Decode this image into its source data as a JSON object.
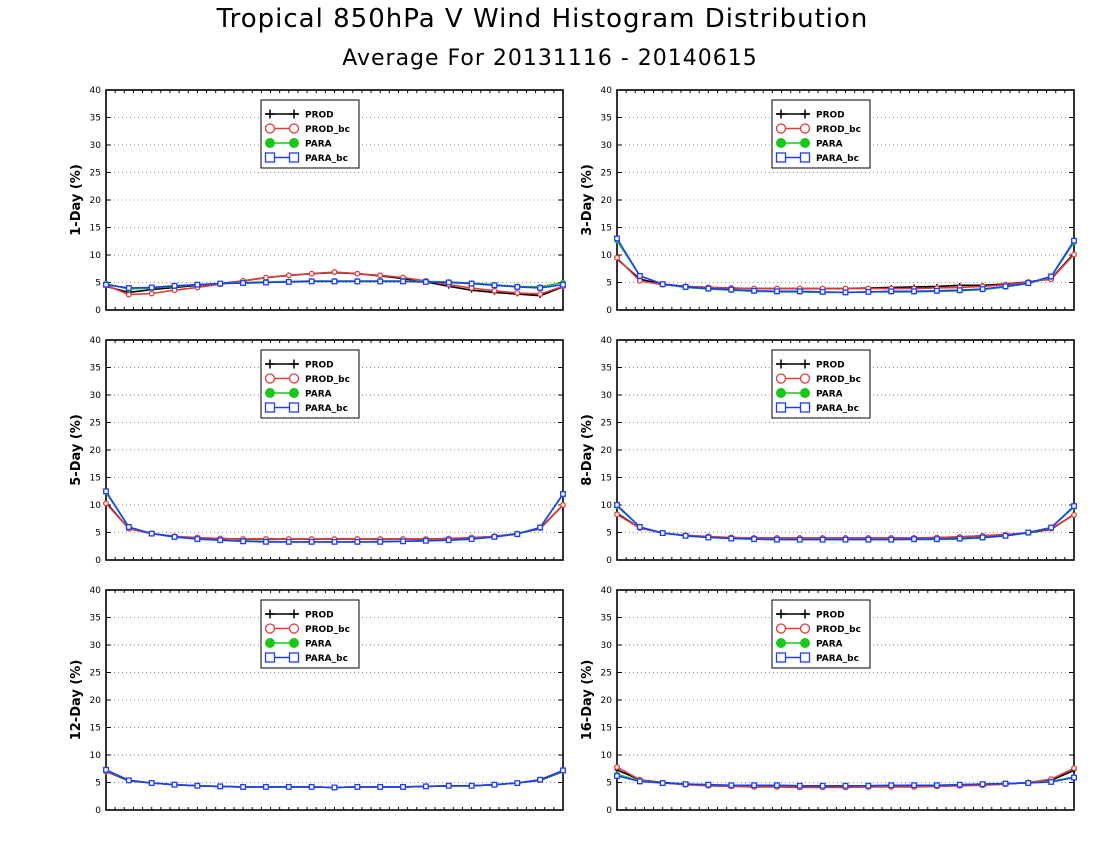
{
  "title": "Tropical 850hPa V Wind Histogram Distribution",
  "subtitle": "Average For 20131116 - 20140615",
  "colors": {
    "PROD": "#000000",
    "PROD_bc": "#e03a3a",
    "PARA": "#18c818",
    "PARA_bc": "#1e3cff"
  },
  "chart_data": [
    {
      "type": "line",
      "ylabel": "1-Day (%)",
      "ylim": [
        0,
        40
      ],
      "yticks": [
        "0",
        "5",
        "10",
        "15",
        "20",
        "25",
        "30",
        "35",
        "40"
      ],
      "grid": true,
      "legend_position": "top-left",
      "series": [
        {
          "name": "PROD",
          "values": [
            4.3,
            3.2,
            3.7,
            4.1,
            4.5,
            4.8,
            5.3,
            5.9,
            6.3,
            6.6,
            6.8,
            6.6,
            6.2,
            5.7,
            5.1,
            4.3,
            3.6,
            3.2,
            2.9,
            2.6,
            4.2
          ]
        },
        {
          "name": "PROD_bc",
          "values": [
            4.5,
            2.8,
            3.0,
            3.6,
            4.1,
            4.7,
            5.3,
            5.9,
            6.3,
            6.6,
            6.9,
            6.6,
            6.3,
            5.9,
            5.3,
            4.6,
            4.0,
            3.5,
            3.1,
            2.9,
            4.3
          ]
        },
        {
          "name": "PARA",
          "values": [
            4.8,
            3.8,
            4.0,
            4.3,
            4.6,
            4.8,
            5.0,
            5.1,
            5.2,
            5.3,
            5.3,
            5.3,
            5.3,
            5.3,
            5.2,
            5.1,
            4.9,
            4.6,
            4.3,
            4.2,
            5.0
          ]
        },
        {
          "name": "PARA_bc",
          "values": [
            4.6,
            4.0,
            4.1,
            4.4,
            4.6,
            4.8,
            4.9,
            5.0,
            5.1,
            5.2,
            5.2,
            5.2,
            5.2,
            5.2,
            5.1,
            5.0,
            4.8,
            4.5,
            4.2,
            4.0,
            4.6
          ]
        }
      ]
    },
    {
      "type": "line",
      "ylabel": "3-Day (%)",
      "ylim": [
        0,
        40
      ],
      "yticks": [
        "0",
        "5",
        "10",
        "15",
        "20",
        "25",
        "30",
        "35",
        "40"
      ],
      "grid": true,
      "legend_position": "top-right",
      "series": [
        {
          "name": "PROD",
          "values": [
            9.3,
            5.6,
            4.7,
            4.3,
            4.1,
            4.0,
            3.9,
            3.9,
            3.9,
            3.9,
            3.9,
            4.0,
            4.1,
            4.2,
            4.3,
            4.5,
            4.5,
            4.7,
            5.1,
            5.7,
            10.3
          ]
        },
        {
          "name": "PROD_bc",
          "values": [
            9.5,
            5.3,
            4.6,
            4.3,
            4.1,
            4.0,
            3.9,
            3.9,
            3.9,
            3.9,
            3.9,
            3.9,
            3.9,
            3.9,
            4.0,
            4.1,
            4.3,
            4.6,
            5.1,
            5.6,
            10.1
          ]
        },
        {
          "name": "PARA",
          "values": [
            12.6,
            6.2,
            4.7,
            4.1,
            3.8,
            3.6,
            3.4,
            3.3,
            3.3,
            3.2,
            3.2,
            3.3,
            3.3,
            3.3,
            3.4,
            3.5,
            3.7,
            4.2,
            4.8,
            6.0,
            12.3
          ]
        },
        {
          "name": "PARA_bc",
          "values": [
            13.0,
            6.2,
            4.7,
            4.2,
            3.9,
            3.7,
            3.5,
            3.4,
            3.4,
            3.3,
            3.2,
            3.3,
            3.4,
            3.4,
            3.5,
            3.6,
            3.8,
            4.3,
            4.9,
            6.1,
            12.6
          ]
        }
      ]
    },
    {
      "type": "line",
      "ylabel": "5-Day (%)",
      "ylim": [
        0,
        40
      ],
      "yticks": [
        "0",
        "5",
        "10",
        "15",
        "20",
        "25",
        "30",
        "35",
        "40"
      ],
      "grid": true,
      "legend_position": "top-left",
      "series": [
        {
          "name": "PROD",
          "values": [
            10.5,
            5.7,
            4.8,
            4.3,
            4.0,
            3.9,
            3.8,
            3.8,
            3.8,
            3.8,
            3.8,
            3.8,
            3.8,
            3.8,
            3.8,
            3.9,
            4.0,
            4.3,
            4.8,
            5.7,
            10.0
          ]
        },
        {
          "name": "PROD_bc",
          "values": [
            10.3,
            5.7,
            4.8,
            4.3,
            4.1,
            3.9,
            3.8,
            3.8,
            3.8,
            3.8,
            3.8,
            3.8,
            3.8,
            3.8,
            3.8,
            3.9,
            4.1,
            4.3,
            4.8,
            5.8,
            10.0
          ]
        },
        {
          "name": "PARA",
          "values": [
            12.3,
            6.0,
            4.8,
            4.2,
            3.8,
            3.6,
            3.5,
            3.4,
            3.3,
            3.3,
            3.3,
            3.3,
            3.4,
            3.4,
            3.5,
            3.6,
            3.8,
            4.2,
            4.8,
            5.9,
            11.9
          ]
        },
        {
          "name": "PARA_bc",
          "values": [
            12.5,
            6.0,
            4.8,
            4.2,
            3.8,
            3.6,
            3.4,
            3.3,
            3.3,
            3.3,
            3.3,
            3.3,
            3.3,
            3.4,
            3.5,
            3.6,
            3.8,
            4.2,
            4.7,
            5.9,
            12.0
          ]
        }
      ]
    },
    {
      "type": "line",
      "ylabel": "8-Day (%)",
      "ylim": [
        0,
        40
      ],
      "yticks": [
        "0",
        "5",
        "10",
        "15",
        "20",
        "25",
        "30",
        "35",
        "40"
      ],
      "grid": true,
      "legend_position": "top-right",
      "series": [
        {
          "name": "PROD",
          "values": [
            8.5,
            5.8,
            4.9,
            4.5,
            4.2,
            4.1,
            4.0,
            4.0,
            4.0,
            4.0,
            4.0,
            4.0,
            4.0,
            4.0,
            4.1,
            4.2,
            4.4,
            4.6,
            4.9,
            5.6,
            8.3
          ]
        },
        {
          "name": "PROD_bc",
          "values": [
            8.3,
            5.8,
            4.9,
            4.5,
            4.3,
            4.1,
            4.0,
            4.0,
            4.0,
            4.0,
            4.0,
            4.0,
            4.0,
            4.0,
            4.1,
            4.2,
            4.4,
            4.6,
            5.0,
            5.7,
            8.2
          ]
        },
        {
          "name": "PARA",
          "values": [
            9.8,
            6.0,
            4.9,
            4.4,
            4.1,
            3.9,
            3.8,
            3.7,
            3.7,
            3.7,
            3.7,
            3.7,
            3.7,
            3.7,
            3.7,
            3.8,
            4.0,
            4.4,
            4.9,
            5.9,
            9.6
          ]
        },
        {
          "name": "PARA_bc",
          "values": [
            10.0,
            6.0,
            4.9,
            4.4,
            4.1,
            3.9,
            3.8,
            3.7,
            3.7,
            3.7,
            3.7,
            3.7,
            3.7,
            3.8,
            3.8,
            3.9,
            4.1,
            4.4,
            5.0,
            5.9,
            9.8
          ]
        }
      ]
    },
    {
      "type": "line",
      "ylabel": "12-Day (%)",
      "ylim": [
        0,
        40
      ],
      "yticks": [
        "0",
        "5",
        "10",
        "15",
        "20",
        "25",
        "30",
        "35",
        "40"
      ],
      "grid": true,
      "legend_position": "top-left",
      "series": [
        {
          "name": "PROD",
          "values": [
            7.0,
            5.3,
            4.9,
            4.6,
            4.4,
            4.3,
            4.2,
            4.2,
            4.2,
            4.2,
            4.1,
            4.2,
            4.2,
            4.2,
            4.3,
            4.4,
            4.4,
            4.6,
            4.9,
            5.4,
            7.0
          ]
        },
        {
          "name": "PROD_bc",
          "values": [
            7.0,
            5.4,
            4.9,
            4.6,
            4.4,
            4.3,
            4.2,
            4.2,
            4.2,
            4.2,
            4.1,
            4.2,
            4.2,
            4.2,
            4.3,
            4.4,
            4.4,
            4.6,
            4.9,
            5.5,
            7.1
          ]
        },
        {
          "name": "PARA",
          "values": [
            7.2,
            5.4,
            4.9,
            4.6,
            4.4,
            4.3,
            4.2,
            4.2,
            4.2,
            4.2,
            4.1,
            4.2,
            4.2,
            4.2,
            4.3,
            4.4,
            4.4,
            4.6,
            4.9,
            5.5,
            7.1
          ]
        },
        {
          "name": "PARA_bc",
          "values": [
            7.3,
            5.4,
            4.9,
            4.6,
            4.4,
            4.3,
            4.2,
            4.2,
            4.2,
            4.2,
            4.1,
            4.2,
            4.2,
            4.2,
            4.3,
            4.4,
            4.4,
            4.6,
            4.9,
            5.5,
            7.2
          ]
        }
      ]
    },
    {
      "type": "line",
      "ylabel": "16-Day (%)",
      "ylim": [
        0,
        40
      ],
      "yticks": [
        "0",
        "5",
        "10",
        "15",
        "20",
        "25",
        "30",
        "35",
        "40"
      ],
      "grid": true,
      "legend_position": "top-right",
      "series": [
        {
          "name": "PROD",
          "values": [
            7.3,
            5.5,
            5.0,
            4.7,
            4.5,
            4.4,
            4.3,
            4.3,
            4.3,
            4.3,
            4.3,
            4.3,
            4.3,
            4.3,
            4.4,
            4.5,
            4.6,
            4.7,
            5.0,
            5.4,
            7.2
          ]
        },
        {
          "name": "PROD_bc",
          "values": [
            7.8,
            5.5,
            4.9,
            4.6,
            4.4,
            4.3,
            4.2,
            4.2,
            4.1,
            4.1,
            4.1,
            4.2,
            4.2,
            4.2,
            4.3,
            4.4,
            4.5,
            4.7,
            5.0,
            5.6,
            7.6
          ]
        },
        {
          "name": "PARA",
          "values": [
            6.5,
            5.3,
            4.9,
            4.7,
            4.6,
            4.5,
            4.5,
            4.5,
            4.4,
            4.4,
            4.4,
            4.4,
            4.5,
            4.5,
            4.5,
            4.6,
            4.7,
            4.8,
            4.9,
            5.2,
            6.0
          ]
        },
        {
          "name": "PARA_bc",
          "values": [
            6.2,
            5.2,
            4.9,
            4.7,
            4.6,
            4.5,
            4.5,
            4.5,
            4.4,
            4.4,
            4.4,
            4.4,
            4.5,
            4.5,
            4.5,
            4.6,
            4.7,
            4.8,
            4.9,
            5.1,
            5.9
          ]
        }
      ]
    }
  ]
}
